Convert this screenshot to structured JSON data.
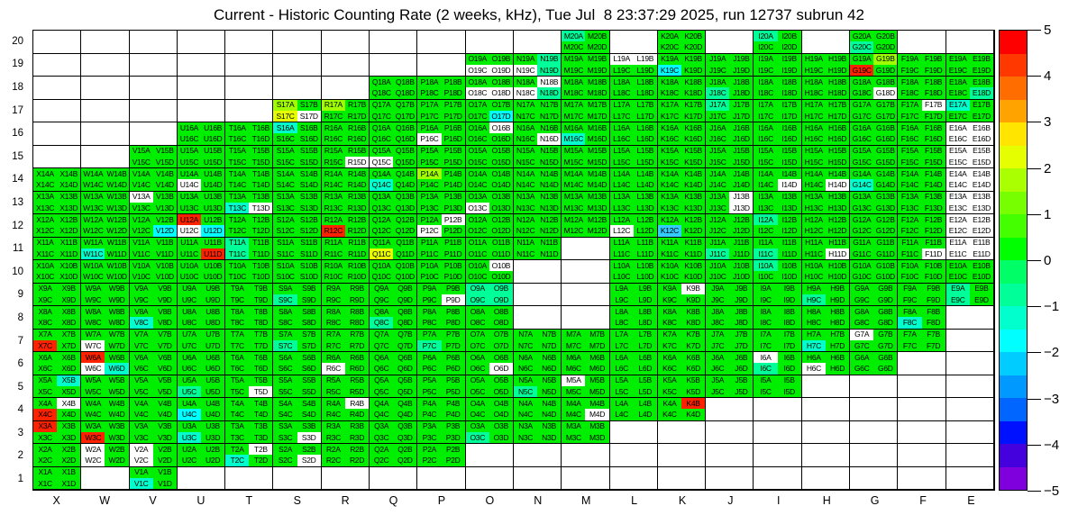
{
  "title": "Current - Historic Counting Rate (2 weeks, kHz), Tue Jul  8 23:37:29 2025, run 12737 subrun 42",
  "chart_data": {
    "type": "heatmap",
    "title": "Current - Historic Counting Rate (2 weeks, kHz), Tue Jul  8 23:37:29 2025, run 12737 subrun 42",
    "xlabel": "",
    "ylabel": "",
    "columns": [
      "X",
      "W",
      "V",
      "U",
      "T",
      "S",
      "R",
      "Q",
      "P",
      "O",
      "N",
      "M",
      "L",
      "K",
      "J",
      "I",
      "H",
      "G",
      "F",
      "E"
    ],
    "rows": [
      20,
      19,
      18,
      17,
      16,
      15,
      14,
      13,
      12,
      11,
      10,
      9,
      8,
      7,
      6,
      5,
      4,
      3,
      2,
      1
    ],
    "x_ticks": [
      "X",
      "W",
      "V",
      "U",
      "T",
      "S",
      "R",
      "Q",
      "P",
      "O",
      "N",
      "M",
      "L",
      "K",
      "J",
      "I",
      "H",
      "G",
      "F",
      "E"
    ],
    "y_ticks": [
      "20",
      "19",
      "18",
      "17",
      "16",
      "15",
      "14",
      "13",
      "12",
      "11",
      "10",
      "9",
      "8",
      "7",
      "6",
      "5",
      "4",
      "3",
      "2",
      "1"
    ],
    "subcells": [
      "A",
      "B",
      "C",
      "D"
    ],
    "cell_label_pattern": "{column}{row}{subcell}",
    "default_color": "#00EE00",
    "default_value_approx": 0.3,
    "color_value_approx": {
      "#FF2200": 4.8,
      "#E8FF00": 2.6,
      "#9FFF00": 1.9,
      "#00FF99": -0.8,
      "#00FFCC": -1.2,
      "#00FFFF": -1.8,
      "#33CCFF": -2.3,
      "#FFFFFF": null
    },
    "row_columns": {
      "20": [
        "M",
        "K",
        "I",
        "G"
      ],
      "19": [
        "O",
        "N",
        "M",
        "L",
        "K",
        "J",
        "I",
        "H",
        "G",
        "F",
        "E"
      ],
      "18": [
        "Q",
        "P",
        "O",
        "N",
        "M",
        "L",
        "K",
        "J",
        "I",
        "H",
        "G",
        "F",
        "E"
      ],
      "17": [
        "S",
        "R",
        "Q",
        "P",
        "O",
        "N",
        "M",
        "L",
        "K",
        "J",
        "I",
        "H",
        "G",
        "F",
        "E"
      ],
      "16": [
        "U",
        "T",
        "S",
        "R",
        "Q",
        "P",
        "O",
        "N",
        "M",
        "L",
        "K",
        "J",
        "I",
        "H",
        "G",
        "F",
        "E"
      ],
      "15": [
        "V",
        "U",
        "T",
        "S",
        "R",
        "Q",
        "P",
        "O",
        "N",
        "M",
        "L",
        "K",
        "J",
        "I",
        "H",
        "G",
        "F",
        "E"
      ],
      "14": [
        "X",
        "W",
        "V",
        "U",
        "T",
        "S",
        "R",
        "Q",
        "P",
        "O",
        "N",
        "M",
        "L",
        "K",
        "J",
        "I",
        "H",
        "G",
        "F",
        "E"
      ],
      "13": [
        "X",
        "W",
        "V",
        "U",
        "T",
        "S",
        "R",
        "Q",
        "P",
        "O",
        "N",
        "M",
        "L",
        "K",
        "J",
        "I",
        "H",
        "G",
        "F",
        "E"
      ],
      "12": [
        "X",
        "W",
        "V",
        "U",
        "T",
        "S",
        "R",
        "Q",
        "P",
        "O",
        "N",
        "M",
        "L",
        "K",
        "J",
        "I",
        "H",
        "G",
        "F",
        "E"
      ],
      "11": [
        "X",
        "W",
        "V",
        "U",
        "T",
        "S",
        "R",
        "Q",
        "P",
        "O",
        "N",
        "L",
        "K",
        "J",
        "I",
        "H",
        "G",
        "F",
        "E"
      ],
      "10": [
        "X",
        "W",
        "V",
        "U",
        "T",
        "S",
        "R",
        "Q",
        "P",
        "O",
        "L",
        "K",
        "J",
        "I",
        "H",
        "G",
        "F",
        "E"
      ],
      "9": [
        "X",
        "W",
        "V",
        "U",
        "T",
        "S",
        "R",
        "Q",
        "P",
        "O",
        "L",
        "K",
        "J",
        "I",
        "H",
        "G",
        "F",
        "E"
      ],
      "8": [
        "X",
        "W",
        "V",
        "U",
        "T",
        "S",
        "R",
        "Q",
        "P",
        "O",
        "L",
        "K",
        "J",
        "I",
        "H",
        "G",
        "F"
      ],
      "7": [
        "X",
        "W",
        "V",
        "U",
        "T",
        "S",
        "R",
        "Q",
        "P",
        "O",
        "N",
        "M",
        "L",
        "K",
        "J",
        "I",
        "H",
        "G",
        "F"
      ],
      "6": [
        "X",
        "W",
        "V",
        "U",
        "T",
        "S",
        "R",
        "Q",
        "P",
        "O",
        "N",
        "M",
        "L",
        "K",
        "J",
        "I",
        "H",
        "G"
      ],
      "5": [
        "X",
        "W",
        "V",
        "U",
        "T",
        "S",
        "R",
        "Q",
        "P",
        "O",
        "N",
        "M",
        "L",
        "K",
        "J",
        "I"
      ],
      "4": [
        "X",
        "W",
        "V",
        "U",
        "T",
        "S",
        "R",
        "Q",
        "P",
        "O",
        "N",
        "M",
        "L",
        "K"
      ],
      "3": [
        "X",
        "W",
        "V",
        "U",
        "T",
        "S",
        "R",
        "Q",
        "P",
        "O",
        "N",
        "M"
      ],
      "2": [
        "X",
        "W",
        "V",
        "U",
        "T",
        "S",
        "R",
        "Q",
        "P"
      ],
      "1": [
        "X",
        "V"
      ]
    },
    "cell_color_overrides": {
      "M20A": "#00FF99",
      "I20A": "#00FF99",
      "G20C": "#00FF99",
      "O19C": "#FFFFFF",
      "O19D": "#FFFFFF",
      "N19B": "#00FF99",
      "N19C": "#FFFFFF",
      "N19D": "#00FF99",
      "L19A": "#FFFFFF",
      "L19B": "#FFFFFF",
      "K19C": "#00FFFF",
      "G19B": "#9FFF00",
      "G19C": "#FF2200",
      "O18C": "#FFFFFF",
      "O18D": "#FFFFFF",
      "N18B": "#FFFFFF",
      "N18C": "#FFFFFF",
      "N18D": "#00FF99",
      "J18C": "#00FF99",
      "G18D": "#FFFFFF",
      "E18D": "#00FF99",
      "S17A": "#9FFF00",
      "S17C": "#E8FF00",
      "S17D": "#FFFFFF",
      "R17A": "#9FFF00",
      "O17D": "#00FFFF",
      "J17A": "#00FF99",
      "F17B": "#FFFFFF",
      "E17A": "#00FFCC",
      "S16A": "#00FFCC",
      "P16C": "#FFFFFF",
      "O16B": "#FFFFFF",
      "N16D": "#FFFFFF",
      "M16C": "#00FFCC",
      "E16A": "#FFFFFF",
      "E16B": "#FFFFFF",
      "E16C": "#FFFFFF",
      "E16D": "#FFFFFF",
      "R15D": "#FFFFFF",
      "Q15C": "#FFFFFF",
      "E15A": "#FFFFFF",
      "E15B": "#FFFFFF",
      "E15C": "#FFFFFF",
      "E15D": "#FFFFFF",
      "U14C": "#FFFFFF",
      "Q14C": "#00FFCC",
      "P14A": "#9FFF00",
      "I14D": "#FFFFFF",
      "H14D": "#FFFFFF",
      "G14C": "#00FFCC",
      "E14A": "#FFFFFF",
      "E14B": "#FFFFFF",
      "E14C": "#FFFFFF",
      "E14D": "#FFFFFF",
      "V13A": "#FFFFFF",
      "T13C": "#00FFCC",
      "T13D": "#FFFFFF",
      "O13C": "#FFFFFF",
      "J13B": "#FFFFFF",
      "J13D": "#FFFFFF",
      "E13A": "#FFFFFF",
      "E13B": "#FFFFFF",
      "E13C": "#FFFFFF",
      "E13D": "#FFFFFF",
      "V12D": "#00FFFF",
      "U12A": "#FF2200",
      "U12C": "#FFFFFF",
      "U12D": "#00FFFF",
      "R12C": "#FF2200",
      "P12B": "#FFFFFF",
      "P12C": "#FFFFFF",
      "L12C": "#FFFFFF",
      "K12C": "#33CCFF",
      "I12A": "#00FF99",
      "E12A": "#FFFFFF",
      "E12B": "#FFFFFF",
      "E12C": "#FFFFFF",
      "E12D": "#FFFFFF",
      "W11C": "#00FFCC",
      "U11D": "#FF2200",
      "T11A": "#00FF99",
      "T11C": "#00FF99",
      "Q11C": "#E8FF00",
      "J11C": "#00FF99",
      "I11C": "#00FF99",
      "H11D": "#FFFFFF",
      "F11D": "#FFFFFF",
      "E11A": "#FFFFFF",
      "E11B": "#FFFFFF",
      "E11C": "#FFFFFF",
      "E11D": "#FFFFFF",
      "O10B": "#FFFFFF",
      "I10A": "#00FF99",
      "S9C": "#00FF99",
      "P9D": "#FFFFFF",
      "O9A": "#00FF99",
      "O9B": "#00FF99",
      "O9C": "#00FF99",
      "O9D": "#00FF99",
      "K9B": "#FFFFFF",
      "H9C": "#00FF99",
      "E9A": "#00FF99",
      "E9C": "#00FF99",
      "V8C": "#00FFCC",
      "Q8C": "#00FF99",
      "F8C": "#00FFCC",
      "X7C": "#FF2200",
      "W7C": "#FFFFFF",
      "S7C": "#00FF99",
      "P7C": "#00FF99",
      "H7C": "#00FFCC",
      "G7A": "#FFFFFF",
      "W6A": "#FF2200",
      "W6C": "#FFFFFF",
      "W6D": "#00FFCC",
      "R6C": "#FFFFFF",
      "O6D": "#FFFFFF",
      "I6A": "#FFFFFF",
      "I6C": "#00FF99",
      "H6C": "#FFFFFF",
      "X5B": "#00FFCC",
      "U5C": "#00FF99",
      "T5D": "#FFFFFF",
      "N5C": "#00FF99",
      "M5A": "#FFFFFF",
      "X4B": "#FFFFFF",
      "X4C": "#FF2200",
      "U4C": "#00FFFF",
      "R4B": "#FFFFFF",
      "M4D": "#FFFFFF",
      "K4B": "#FF2200",
      "X3A": "#FF2200",
      "W3C": "#FF2200",
      "U3C": "#00FFCC",
      "S3D": "#FFFFFF",
      "O3C": "#00FF99",
      "W2A": "#FFFFFF",
      "W2C": "#FFFFFF",
      "V2A": "#FFFFFF",
      "V2C": "#FFFFFF",
      "T2B": "#FFFFFF",
      "T2C": "#00FFCC",
      "S2D": "#FFFFFF",
      "V1C": "#00FFCC"
    },
    "colorbar": {
      "min": -5,
      "max": 5,
      "position": "right",
      "ticks": [
        5,
        4,
        3,
        2,
        1,
        0,
        -1,
        -2,
        -3,
        -4,
        -5
      ],
      "segments": [
        "#FF0000",
        "#FF3800",
        "#FF6D00",
        "#FFA300",
        "#FFE500",
        "#E5FF00",
        "#AAFF00",
        "#77FF00",
        "#44FF00",
        "#00FF00",
        "#00FF66",
        "#00FF99",
        "#00FFCC",
        "#00FFFF",
        "#00CCFF",
        "#0099FF",
        "#0066FF",
        "#0011FF",
        "#4400DD",
        "#7F00DC"
      ]
    },
    "legend_position": "right",
    "grid_lines": true
  }
}
